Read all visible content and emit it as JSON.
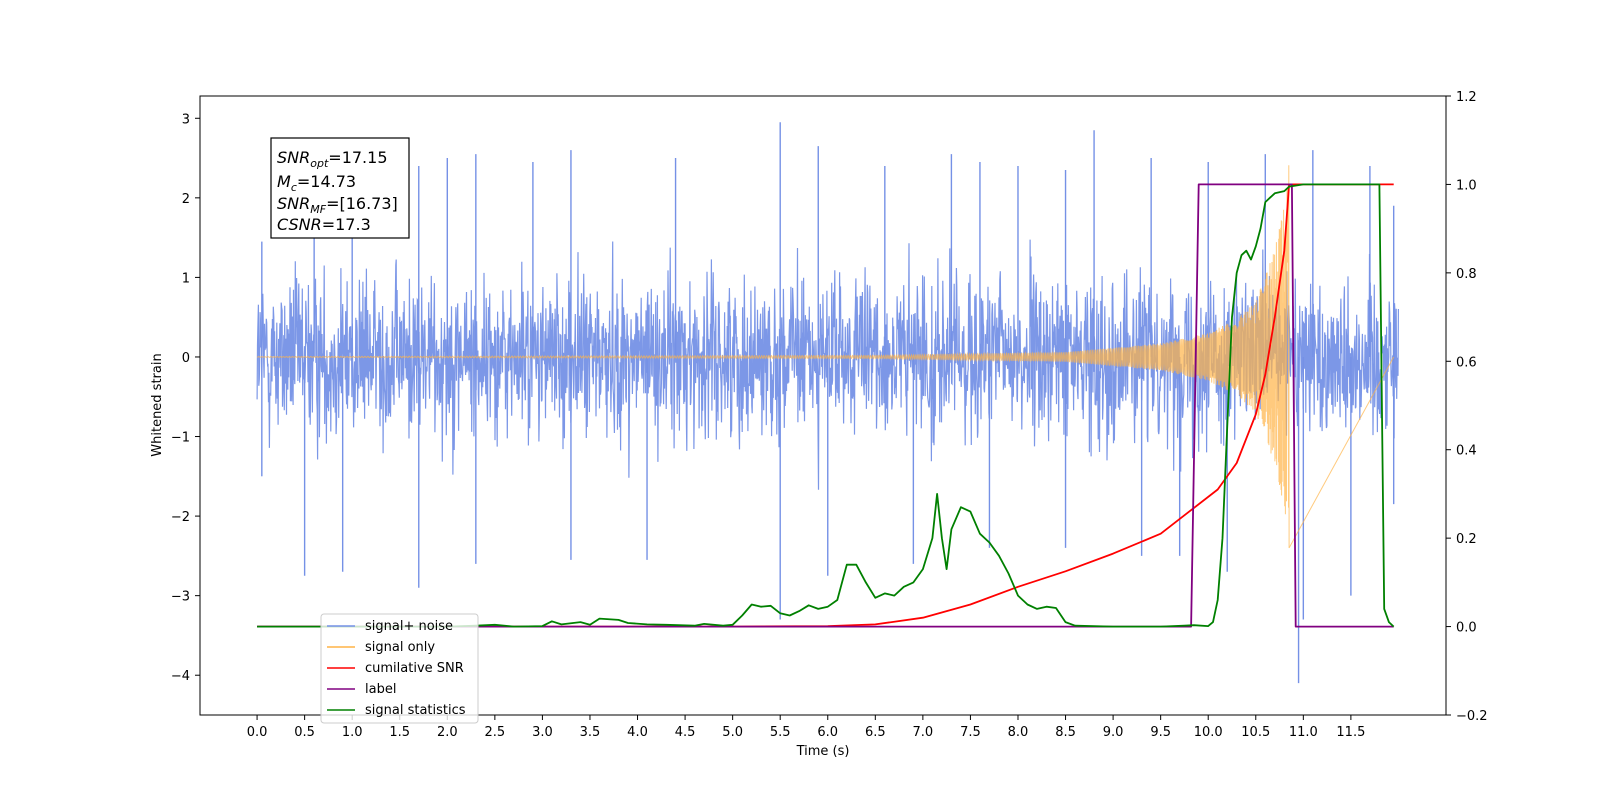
{
  "chart_data": {
    "type": "line",
    "xlabel": "Time (s)",
    "ylabel": "Whitened strain",
    "xlim": [
      -0.6,
      12.5
    ],
    "ylim": [
      -4.5,
      3.28
    ],
    "y2lim": [
      -0.2,
      1.2
    ],
    "x_ticks": [
      "0.0",
      "0.5",
      "1.0",
      "1.5",
      "2.0",
      "2.5",
      "3.0",
      "3.5",
      "4.0",
      "4.5",
      "5.0",
      "5.5",
      "6.0",
      "6.5",
      "7.0",
      "7.5",
      "8.0",
      "8.5",
      "9.0",
      "9.5",
      "10.0",
      "10.5",
      "11.0",
      "11.5"
    ],
    "y_ticks": [
      "3",
      "2",
      "1",
      "0",
      "−1",
      "−2",
      "−3",
      "−4"
    ],
    "y2_ticks": [
      "1.2",
      "1.0",
      "0.8",
      "0.6",
      "0.4",
      "0.2",
      "0.0",
      "−0.2"
    ],
    "legend_position": "lower-left",
    "grid": false,
    "annotation": {
      "snr_opt": "17.15",
      "mc": "14.73",
      "snr_mf": "[16.73]",
      "csnr": "17.3"
    },
    "series": [
      {
        "name": "signal+ noise",
        "color": "#7591e6",
        "axis": "left",
        "x_range": [
          0,
          12
        ],
        "envelope_upper": 1.5,
        "envelope_lower": -1.5,
        "peaks_up": [
          [
            0.05,
            1.45
          ],
          [
            0.6,
            2.35
          ],
          [
            1.0,
            2.3
          ],
          [
            1.7,
            2.4
          ],
          [
            2.0,
            2.5
          ],
          [
            2.3,
            2.55
          ],
          [
            2.9,
            2.45
          ],
          [
            3.3,
            2.6
          ],
          [
            4.4,
            2.5
          ],
          [
            5.5,
            2.95
          ],
          [
            5.9,
            2.65
          ],
          [
            6.6,
            2.4
          ],
          [
            7.3,
            2.55
          ],
          [
            7.6,
            2.45
          ],
          [
            8.0,
            2.4
          ],
          [
            8.5,
            2.35
          ],
          [
            8.8,
            2.85
          ],
          [
            9.4,
            2.5
          ],
          [
            10.0,
            2.45
          ],
          [
            10.6,
            2.55
          ],
          [
            11.1,
            2.6
          ],
          [
            11.7,
            2.4
          ],
          [
            11.95,
            1.9
          ]
        ],
        "peaks_down": [
          [
            0.05,
            -1.5
          ],
          [
            0.5,
            -2.75
          ],
          [
            0.9,
            -2.7
          ],
          [
            1.7,
            -2.9
          ],
          [
            2.3,
            -2.6
          ],
          [
            3.3,
            -2.55
          ],
          [
            4.1,
            -2.55
          ],
          [
            5.5,
            -3.3
          ],
          [
            6.0,
            -2.75
          ],
          [
            6.9,
            -2.6
          ],
          [
            7.7,
            -2.4
          ],
          [
            8.5,
            -2.4
          ],
          [
            9.3,
            -2.5
          ],
          [
            9.7,
            -2.5
          ],
          [
            10.2,
            -2.7
          ],
          [
            11.0,
            -3.3
          ],
          [
            10.95,
            -4.1
          ],
          [
            11.5,
            -3.0
          ],
          [
            11.95,
            -1.85
          ]
        ]
      },
      {
        "name": "signal only",
        "color": "#ffb347",
        "axis": "left",
        "chirp_start": 0,
        "chirp_merger": 10.85,
        "amplitude_points": [
          [
            0,
            0.005
          ],
          [
            6.5,
            0.02
          ],
          [
            8.5,
            0.06
          ],
          [
            9.5,
            0.17
          ],
          [
            10.0,
            0.3
          ],
          [
            10.3,
            0.48
          ],
          [
            10.5,
            0.7
          ],
          [
            10.7,
            1.35
          ],
          [
            10.8,
            1.9
          ],
          [
            10.85,
            2.45
          ]
        ]
      },
      {
        "name": "cumilative SNR",
        "color": "#ff0000",
        "axis": "right",
        "points": [
          [
            0,
            0
          ],
          [
            5,
            0
          ],
          [
            6,
            0.001
          ],
          [
            6.5,
            0.005
          ],
          [
            7.0,
            0.02
          ],
          [
            7.5,
            0.05
          ],
          [
            8.0,
            0.09
          ],
          [
            8.5,
            0.125
          ],
          [
            9.0,
            0.165
          ],
          [
            9.5,
            0.21
          ],
          [
            9.8,
            0.26
          ],
          [
            10.1,
            0.31
          ],
          [
            10.3,
            0.37
          ],
          [
            10.5,
            0.48
          ],
          [
            10.6,
            0.57
          ],
          [
            10.7,
            0.7
          ],
          [
            10.8,
            0.85
          ],
          [
            10.85,
            1.0
          ],
          [
            11.0,
            1.0
          ],
          [
            11.5,
            1.0
          ],
          [
            11.95,
            1.0
          ]
        ]
      },
      {
        "name": "label",
        "color": "#800080",
        "axis": "right",
        "points": [
          [
            0,
            0
          ],
          [
            9.82,
            0
          ],
          [
            9.9,
            1.0
          ],
          [
            10.88,
            1.0
          ],
          [
            10.92,
            0
          ],
          [
            11.95,
            0
          ]
        ]
      },
      {
        "name": "signal statistics",
        "color": "#008000",
        "axis": "right",
        "points": [
          [
            0,
            0
          ],
          [
            1,
            0
          ],
          [
            2,
            0
          ],
          [
            2.3,
            0.002
          ],
          [
            2.5,
            0.004
          ],
          [
            2.7,
            0
          ],
          [
            3.0,
            0.001
          ],
          [
            3.1,
            0.012
          ],
          [
            3.2,
            0.005
          ],
          [
            3.4,
            0.01
          ],
          [
            3.5,
            0.004
          ],
          [
            3.6,
            0.018
          ],
          [
            3.8,
            0.015
          ],
          [
            3.9,
            0.008
          ],
          [
            4.1,
            0.005
          ],
          [
            4.3,
            0.004
          ],
          [
            4.6,
            0.002
          ],
          [
            4.7,
            0.006
          ],
          [
            4.9,
            0.002
          ],
          [
            5.0,
            0.004
          ],
          [
            5.1,
            0.025
          ],
          [
            5.2,
            0.05
          ],
          [
            5.3,
            0.045
          ],
          [
            5.4,
            0.047
          ],
          [
            5.5,
            0.03
          ],
          [
            5.6,
            0.025
          ],
          [
            5.7,
            0.035
          ],
          [
            5.8,
            0.048
          ],
          [
            5.9,
            0.04
          ],
          [
            6.0,
            0.045
          ],
          [
            6.1,
            0.06
          ],
          [
            6.2,
            0.14
          ],
          [
            6.3,
            0.14
          ],
          [
            6.4,
            0.1
          ],
          [
            6.5,
            0.065
          ],
          [
            6.6,
            0.075
          ],
          [
            6.7,
            0.07
          ],
          [
            6.8,
            0.09
          ],
          [
            6.9,
            0.1
          ],
          [
            7.0,
            0.13
          ],
          [
            7.1,
            0.2
          ],
          [
            7.15,
            0.3
          ],
          [
            7.2,
            0.2
          ],
          [
            7.25,
            0.13
          ],
          [
            7.3,
            0.22
          ],
          [
            7.4,
            0.27
          ],
          [
            7.5,
            0.26
          ],
          [
            7.6,
            0.21
          ],
          [
            7.7,
            0.19
          ],
          [
            7.8,
            0.16
          ],
          [
            7.9,
            0.12
          ],
          [
            8.0,
            0.07
          ],
          [
            8.1,
            0.05
          ],
          [
            8.2,
            0.04
          ],
          [
            8.3,
            0.045
          ],
          [
            8.4,
            0.042
          ],
          [
            8.5,
            0.01
          ],
          [
            8.6,
            0.002
          ],
          [
            9.0,
            0
          ],
          [
            9.5,
            0
          ],
          [
            9.75,
            0.002
          ],
          [
            9.85,
            0.003
          ],
          [
            10.0,
            0.001
          ],
          [
            10.05,
            0.01
          ],
          [
            10.1,
            0.06
          ],
          [
            10.15,
            0.2
          ],
          [
            10.2,
            0.45
          ],
          [
            10.25,
            0.7
          ],
          [
            10.3,
            0.8
          ],
          [
            10.35,
            0.84
          ],
          [
            10.4,
            0.85
          ],
          [
            10.45,
            0.83
          ],
          [
            10.5,
            0.86
          ],
          [
            10.55,
            0.9
          ],
          [
            10.6,
            0.96
          ],
          [
            10.65,
            0.97
          ],
          [
            10.7,
            0.98
          ],
          [
            10.8,
            0.985
          ],
          [
            10.85,
            0.995
          ],
          [
            11.0,
            1.0
          ],
          [
            11.8,
            1.0
          ],
          [
            11.85,
            0.04
          ],
          [
            11.9,
            0.01
          ],
          [
            11.95,
            0
          ]
        ]
      }
    ]
  }
}
